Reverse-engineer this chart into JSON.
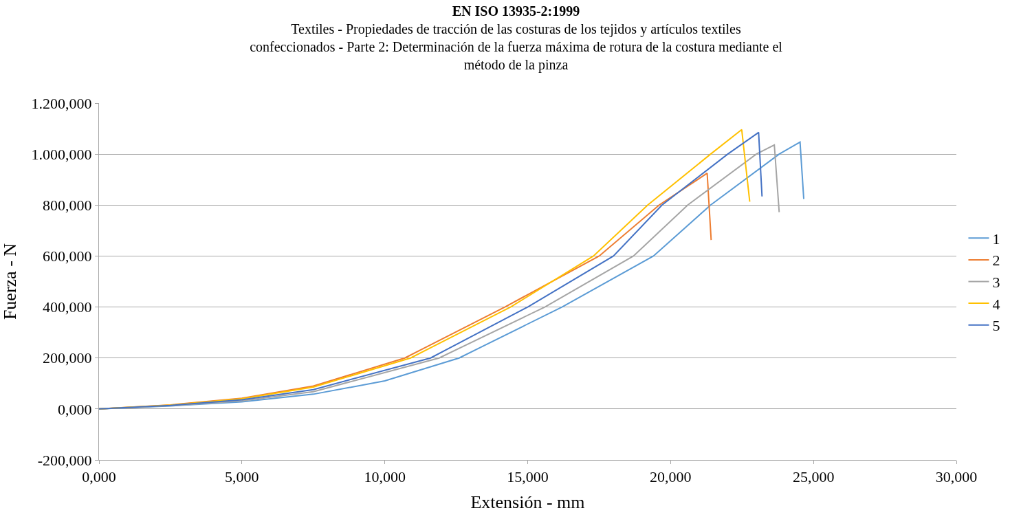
{
  "chart_data": {
    "type": "line",
    "title": "EN ISO 13935-2:1999",
    "subtitle": "Textiles - Propiedades de tracción de las costuras de los tejidos y artículos textiles confeccionados - Parte 2: Determinación de la fuerza máxima de rotura de la costura mediante el método de la pinza",
    "xlabel": "Extensión - mm",
    "ylabel": "Fuerza - N",
    "xlim": [
      0,
      30
    ],
    "xticks": [
      {
        "value": 0,
        "label": "0,000"
      },
      {
        "value": 5,
        "label": "5,000"
      },
      {
        "value": 10,
        "label": "10,000"
      },
      {
        "value": 15,
        "label": "15,000"
      },
      {
        "value": 20,
        "label": "20,000"
      },
      {
        "value": 25,
        "label": "25,000"
      },
      {
        "value": 30,
        "label": "30,000"
      }
    ],
    "ylim": [
      -200,
      1200
    ],
    "yticks": [
      {
        "value": -200,
        "label": "-200,000"
      },
      {
        "value": 0,
        "label": "0,000"
      },
      {
        "value": 200,
        "label": "200,000"
      },
      {
        "value": 400,
        "label": "400,000"
      },
      {
        "value": 600,
        "label": "600,000"
      },
      {
        "value": 800,
        "label": "800,000"
      },
      {
        "value": 1000,
        "label": "1.000,000"
      },
      {
        "value": 1200,
        "label": "1.200,000"
      }
    ],
    "grid": "y",
    "legend": "right",
    "marker": "none",
    "line_style": "solid",
    "series": [
      {
        "name": "1",
        "color": "#5b9bd5",
        "x": [
          0,
          2.5,
          5,
          7.5,
          10,
          12.6,
          16.2,
          19.4,
          21.4,
          23.8,
          24.53,
          24.66
        ],
        "values": [
          0,
          12,
          28,
          58,
          110,
          200,
          400,
          600,
          800,
          1000,
          1047,
          824
        ]
      },
      {
        "name": "2",
        "color": "#ed7d31",
        "x": [
          0,
          2.5,
          5,
          7.5,
          10.7,
          14.2,
          17.5,
          19.6,
          21.28,
          21.42
        ],
        "values": [
          0,
          16,
          42,
          90,
          200,
          400,
          600,
          800,
          925,
          663
        ]
      },
      {
        "name": "3",
        "color": "#a5a5a5",
        "x": [
          0,
          2.5,
          5,
          7.5,
          11.9,
          15.6,
          18.7,
          20.6,
          23.0,
          23.63,
          23.8
        ],
        "values": [
          0,
          13,
          32,
          68,
          200,
          400,
          600,
          800,
          1000,
          1036,
          772
        ]
      },
      {
        "name": "4",
        "color": "#ffc000",
        "x": [
          0,
          2.5,
          5,
          7.5,
          10.9,
          14.4,
          17.3,
          19.2,
          21.4,
          22.49,
          22.77
        ],
        "values": [
          0,
          15,
          40,
          86,
          200,
          400,
          600,
          800,
          1000,
          1096,
          813
        ]
      },
      {
        "name": "5",
        "color": "#4472c4",
        "x": [
          0,
          2.5,
          5,
          7.5,
          11.6,
          15.0,
          18.0,
          19.7,
          22.0,
          23.08,
          23.2
        ],
        "values": [
          0,
          14,
          36,
          76,
          200,
          400,
          600,
          800,
          1000,
          1085,
          834
        ]
      }
    ]
  }
}
